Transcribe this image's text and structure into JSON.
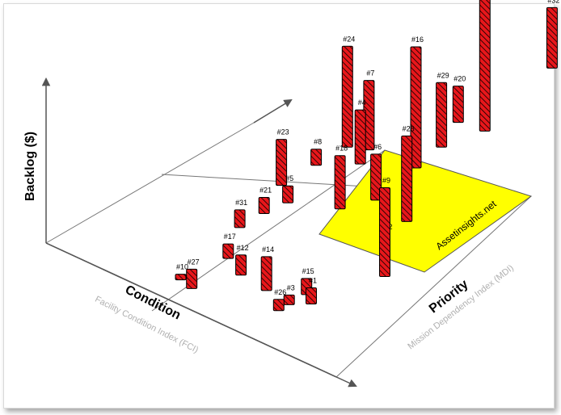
{
  "colors": {
    "bar_fill": "#e8171b",
    "bar_stroke": "#000000",
    "zone_fill": "#ffff00",
    "axis": "#555555",
    "grid": "#777777",
    "subtitle": "#b0b0b0"
  },
  "axes": {
    "y_title": "Backlog  ($)",
    "x_title": "Condition",
    "x_subtitle": "Facility Condition Index (FCI)",
    "z_title": "Priority",
    "z_subtitle": "Mission Dependency Index (MDI)"
  },
  "watermark": "Assetinsights.net",
  "chart_data": {
    "type": "bar",
    "style": "3d-column",
    "x_axis": "Condition",
    "z_axis": "Priority",
    "y_axis": "Backlog  ($)",
    "series": [
      {
        "label": "#1",
        "x": 0.71,
        "z": 0.17,
        "value": 20
      },
      {
        "label": "#2",
        "x": 0.47,
        "z": 0.87,
        "value": 235
      },
      {
        "label": "#3",
        "x": 0.67,
        "z": 0.14,
        "value": 12
      },
      {
        "label": "#4",
        "x": 0.34,
        "z": 0.62,
        "value": 67
      },
      {
        "label": "#5",
        "x": 0.33,
        "z": 0.42,
        "value": 21
      },
      {
        "label": "#6",
        "x": 0.49,
        "z": 0.54,
        "value": 57
      },
      {
        "label": "#7",
        "x": 0.31,
        "z": 0.67,
        "value": 86
      },
      {
        "label": "#8",
        "x": 0.26,
        "z": 0.56,
        "value": 20
      },
      {
        "label": "#9",
        "x": 0.76,
        "z": 0.34,
        "value": 110
      },
      {
        "label": "#10",
        "x": 0.38,
        "z": 0.07,
        "value": 7
      },
      {
        "label": "#12",
        "x": 0.48,
        "z": 0.16,
        "value": 25
      },
      {
        "label": "#14",
        "x": 0.58,
        "z": 0.15,
        "value": 42
      },
      {
        "label": "#15",
        "x": 0.67,
        "z": 0.19,
        "value": 20
      },
      {
        "label": "#16",
        "x": 0.46,
        "z": 0.68,
        "value": 150
      },
      {
        "label": "#17",
        "x": 0.4,
        "z": 0.19,
        "value": 18
      },
      {
        "label": "#18",
        "x": 0.45,
        "z": 0.47,
        "value": 66
      },
      {
        "label": "#20",
        "x": 0.39,
        "z": 0.86,
        "value": 45
      },
      {
        "label": "#21",
        "x": 0.32,
        "z": 0.36,
        "value": 20
      },
      {
        "label": "#22",
        "x": 0.7,
        "z": 0.39,
        "value": 30
      },
      {
        "label": "#23",
        "x": 0.26,
        "z": 0.46,
        "value": 57
      },
      {
        "label": "#24",
        "x": 0.26,
        "z": 0.65,
        "value": 125
      },
      {
        "label": "#26",
        "x": 0.67,
        "z": 0.11,
        "value": 14
      },
      {
        "label": "#27",
        "x": 0.43,
        "z": 0.06,
        "value": 24
      },
      {
        "label": "#28",
        "x": 0.62,
        "z": 0.52,
        "value": 106
      },
      {
        "label": "#29",
        "x": 0.44,
        "z": 0.77,
        "value": 80
      },
      {
        "label": "#31",
        "x": 0.32,
        "z": 0.29,
        "value": 22
      },
      {
        "label": "#32",
        "x": 0.39,
        "z": 1.13,
        "value": 75
      }
    ]
  }
}
